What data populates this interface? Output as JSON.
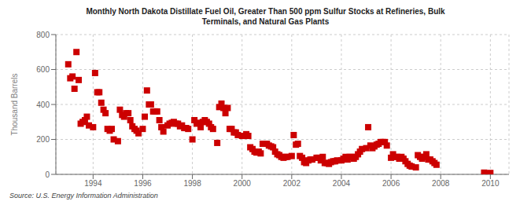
{
  "chart_data": {
    "type": "scatter",
    "title": "Monthly North Dakota Distillate Fuel Oil, Greater Than 500 ppm Sulfur Stocks at Refineries, Bulk\nTerminals, and Natural Gas Plants",
    "ylabel": "Thousand Barrels",
    "annotations": [
      "Source: U.S. Energy Information Administration"
    ],
    "color": "#cc0000",
    "marker": "square",
    "grid": true,
    "xlim": [
      1992.5,
      2010.75
    ],
    "xticks": [
      1994,
      1996,
      1998,
      2000,
      2002,
      2004,
      2006,
      2008,
      2010
    ],
    "ylim": [
      0,
      800
    ],
    "yticks": [
      0,
      200,
      400,
      600,
      800
    ],
    "x": [
      1993.0,
      1993.08,
      1993.17,
      1993.25,
      1993.33,
      1993.42,
      1993.5,
      1993.58,
      1993.67,
      1993.75,
      1993.83,
      1994.0,
      1994.08,
      1994.17,
      1994.25,
      1994.33,
      1994.42,
      1994.5,
      1994.58,
      1994.67,
      1994.75,
      1994.83,
      1995.0,
      1995.08,
      1995.17,
      1995.25,
      1995.33,
      1995.42,
      1995.5,
      1995.58,
      1995.67,
      1995.75,
      1995.83,
      1996.0,
      1996.08,
      1996.17,
      1996.25,
      1996.33,
      1996.42,
      1996.5,
      1996.58,
      1996.67,
      1996.75,
      1996.83,
      1997.0,
      1997.08,
      1997.17,
      1997.25,
      1997.33,
      1997.42,
      1997.5,
      1997.58,
      1997.67,
      1997.75,
      1997.83,
      1998.0,
      1998.08,
      1998.17,
      1998.25,
      1998.33,
      1998.42,
      1998.5,
      1998.58,
      1998.67,
      1998.75,
      1998.83,
      1999.0,
      1999.08,
      1999.17,
      1999.25,
      1999.33,
      1999.42,
      1999.5,
      1999.58,
      1999.67,
      1999.75,
      1999.83,
      2000.0,
      2000.08,
      2000.17,
      2000.25,
      2000.33,
      2000.42,
      2000.5,
      2000.58,
      2000.67,
      2000.75,
      2000.83,
      2001.0,
      2001.08,
      2001.17,
      2001.25,
      2001.33,
      2001.42,
      2001.5,
      2001.58,
      2001.67,
      2001.75,
      2001.83,
      2002.0,
      2002.08,
      2002.17,
      2002.25,
      2002.33,
      2002.42,
      2002.5,
      2002.58,
      2002.67,
      2002.75,
      2002.83,
      2003.0,
      2003.08,
      2003.17,
      2003.25,
      2003.33,
      2003.42,
      2003.5,
      2003.58,
      2003.67,
      2003.75,
      2003.83,
      2004.0,
      2004.08,
      2004.17,
      2004.25,
      2004.33,
      2004.42,
      2004.5,
      2004.58,
      2004.67,
      2004.75,
      2004.83,
      2005.0,
      2005.08,
      2005.17,
      2005.25,
      2005.33,
      2005.42,
      2005.5,
      2005.58,
      2005.67,
      2005.75,
      2005.83,
      2006.0,
      2006.08,
      2006.17,
      2006.25,
      2006.33,
      2006.42,
      2006.5,
      2006.58,
      2006.67,
      2006.75,
      2006.83,
      2007.0,
      2007.08,
      2007.17,
      2007.25,
      2007.33,
      2007.42,
      2007.5,
      2007.58,
      2007.67,
      2007.75,
      2007.83,
      2009.75,
      2009.83,
      2009.92,
      2010.0
    ],
    "values": [
      630,
      550,
      560,
      490,
      700,
      540,
      290,
      300,
      310,
      330,
      280,
      270,
      580,
      470,
      470,
      410,
      370,
      350,
      260,
      250,
      260,
      200,
      190,
      370,
      340,
      330,
      350,
      350,
      310,
      275,
      260,
      250,
      235,
      260,
      330,
      480,
      400,
      400,
      360,
      360,
      360,
      310,
      270,
      245,
      280,
      290,
      295,
      300,
      290,
      290,
      275,
      280,
      265,
      265,
      260,
      200,
      310,
      290,
      295,
      270,
      300,
      310,
      300,
      290,
      270,
      260,
      180,
      385,
      405,
      380,
      350,
      380,
      260,
      260,
      240,
      240,
      225,
      220,
      220,
      230,
      220,
      155,
      145,
      130,
      125,
      130,
      120,
      175,
      175,
      165,
      160,
      155,
      130,
      115,
      110,
      100,
      95,
      100,
      100,
      105,
      225,
      170,
      175,
      105,
      95,
      70,
      65,
      80,
      85,
      85,
      95,
      95,
      80,
      100,
      65,
      65,
      60,
      70,
      75,
      75,
      80,
      80,
      90,
      100,
      85,
      100,
      100,
      90,
      100,
      115,
      130,
      145,
      150,
      270,
      165,
      150,
      160,
      170,
      175,
      185,
      185,
      185,
      165,
      95,
      115,
      100,
      100,
      90,
      100,
      90,
      75,
      60,
      50,
      45,
      40,
      110,
      100,
      90,
      100,
      115,
      85,
      85,
      75,
      65,
      55,
      10,
      5,
      5,
      8
    ]
  }
}
